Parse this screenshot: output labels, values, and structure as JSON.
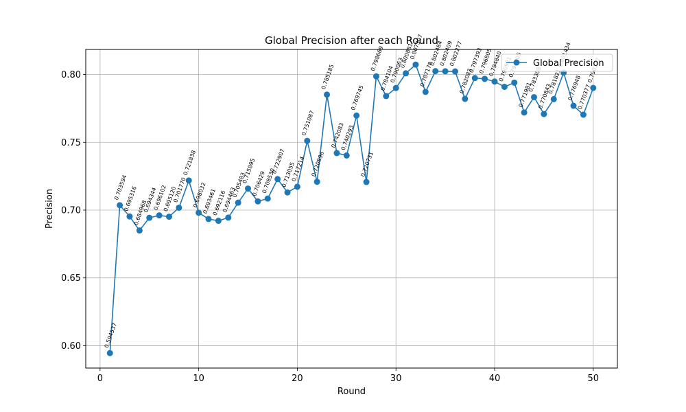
{
  "chart_data": {
    "type": "line",
    "title": "Global Precision after each Round",
    "xlabel": "Round",
    "ylabel": "Precision",
    "xlim": [
      -1.45,
      52.45
    ],
    "ylim": [
      0.5835,
      0.8185
    ],
    "xticks": [
      "0",
      "10",
      "20",
      "30",
      "40",
      "50"
    ],
    "yticks": [
      "0.60",
      "0.65",
      "0.70",
      "0.75",
      "0.80"
    ],
    "grid": true,
    "legend_placement": "upper right",
    "series": [
      {
        "name": "Global Precision",
        "color": "#1f77b4",
        "marker": "circle",
        "x": [
          1,
          2,
          3,
          4,
          5,
          6,
          7,
          8,
          9,
          10,
          11,
          12,
          13,
          14,
          15,
          16,
          17,
          18,
          19,
          20,
          21,
          22,
          23,
          24,
          25,
          26,
          27,
          28,
          29,
          30,
          31,
          32,
          33,
          34,
          35,
          36,
          37,
          38,
          39,
          40,
          41,
          42,
          43,
          44,
          45,
          46,
          47,
          48,
          49,
          50
        ],
        "values": [
          0.594537,
          0.703594,
          0.695316,
          0.684968,
          0.694344,
          0.696102,
          0.69512,
          0.70177,
          0.721838,
          0.698032,
          0.693461,
          0.692116,
          0.694463,
          0.705483,
          0.715895,
          0.706429,
          0.70853,
          0.722907,
          0.713055,
          0.717214,
          0.751087,
          0.720896,
          0.785185,
          0.742083,
          0.740293,
          0.769745,
          0.720731,
          0.798669,
          0.784104,
          0.790063,
          0.800881,
          0.807307,
          0.787178,
          0.802484,
          0.802409,
          0.802277,
          0.782083,
          0.797393,
          0.796805,
          0.79484,
          0.790921,
          0.794005,
          0.771981,
          0.783308,
          0.770843,
          0.781821,
          0.801434,
          0.776948,
          0.770377,
          0.790137
        ],
        "labels": [
          "0.594537",
          "0.703594",
          "0.695316",
          "0.684968",
          "0.694344",
          "0.696102",
          "0.695120",
          "0.701770",
          "0.721838",
          "0.698032",
          "0.693461",
          "0.692116",
          "0.694463",
          "0.705483",
          "0.715895",
          "0.706429",
          "0.708530",
          "0.722907",
          "0.713055",
          "0.717214",
          "0.751087",
          "0.720896",
          "0.785185",
          "0.742083",
          "0.740293",
          "0.769745",
          "0.720731",
          "0.798669",
          "0.784104",
          "0.790063",
          "0.800881",
          "0.807307",
          "0.787178",
          "0.802484",
          "0.802409",
          "0.802277",
          "0.782083",
          "0.797393",
          "0.796805",
          "0.794840",
          "0.790921",
          "0.794005",
          "0.771981",
          "0.783308",
          "0.770843",
          "0.781821",
          "0.801434",
          "0.776948",
          "0.770377",
          "0.790137"
        ]
      }
    ]
  }
}
